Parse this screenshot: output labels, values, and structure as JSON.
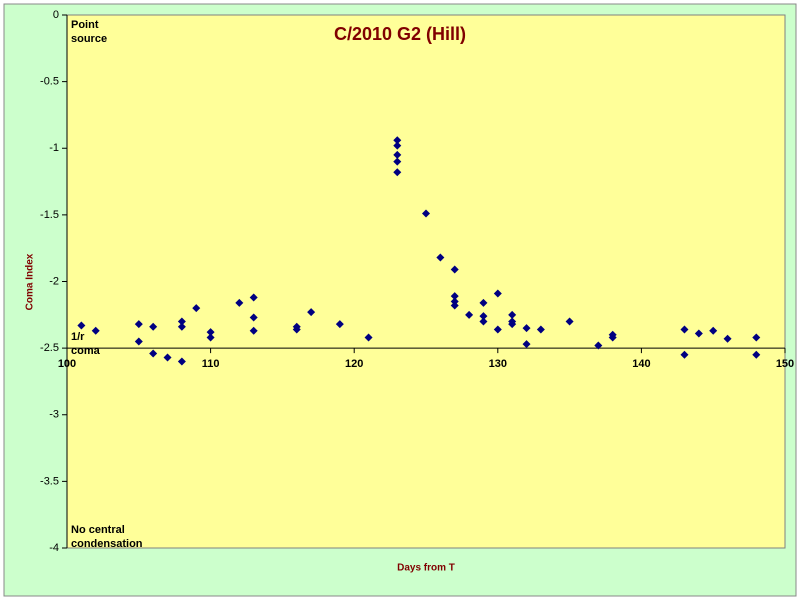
{
  "chart_data": {
    "type": "scatter",
    "title": "C/2010 G2 (Hill)",
    "x_label": "Days from T",
    "y_label": "Coma Index",
    "annotations": [
      [
        "Point",
        "source"
      ],
      [
        "1/r",
        "coma"
      ],
      [
        "No central",
        "condensation"
      ]
    ],
    "xlim": [
      100,
      150
    ],
    "xticks": [
      100,
      110,
      120,
      130,
      140,
      150
    ],
    "ylim": [
      -4,
      0
    ],
    "yticks": [
      0,
      -0.5,
      -1,
      -1.5,
      -2,
      -2.5,
      -3,
      -3.5,
      -4
    ],
    "x_axis_crosses": -2.5,
    "series": [
      {
        "color": "#000080",
        "x": [
          101,
          102,
          105,
          105,
          106,
          106,
          107,
          108,
          108,
          108,
          109,
          110,
          110,
          112,
          113,
          113,
          113,
          116,
          116,
          117,
          119,
          121,
          123,
          123,
          123,
          123,
          123,
          125,
          126,
          127,
          127,
          127,
          127,
          128,
          129,
          129,
          129,
          130,
          130,
          131,
          131,
          131,
          132,
          132,
          133,
          135,
          137,
          138,
          138,
          143,
          143,
          144,
          145,
          146,
          148,
          148
        ],
        "values": [
          -2.33,
          -2.37,
          -2.32,
          -2.45,
          -2.34,
          -2.54,
          -2.57,
          -2.6,
          -2.3,
          -2.34,
          -2.2,
          -2.38,
          -2.42,
          -2.16,
          -2.12,
          -2.27,
          -2.37,
          -2.34,
          -2.36,
          -2.23,
          -2.32,
          -2.42,
          -0.94,
          -0.98,
          -1.05,
          -1.1,
          -1.18,
          -1.49,
          -1.82,
          -1.91,
          -2.11,
          -2.15,
          -2.18,
          -2.25,
          -2.26,
          -2.3,
          -2.16,
          -2.09,
          -2.36,
          -2.25,
          -2.3,
          -2.32,
          -2.35,
          -2.47,
          -2.36,
          -2.3,
          -2.48,
          -2.4,
          -2.42,
          -2.36,
          -2.55,
          -2.39,
          -2.37,
          -2.43,
          -2.42,
          -2.55
        ]
      }
    ]
  }
}
